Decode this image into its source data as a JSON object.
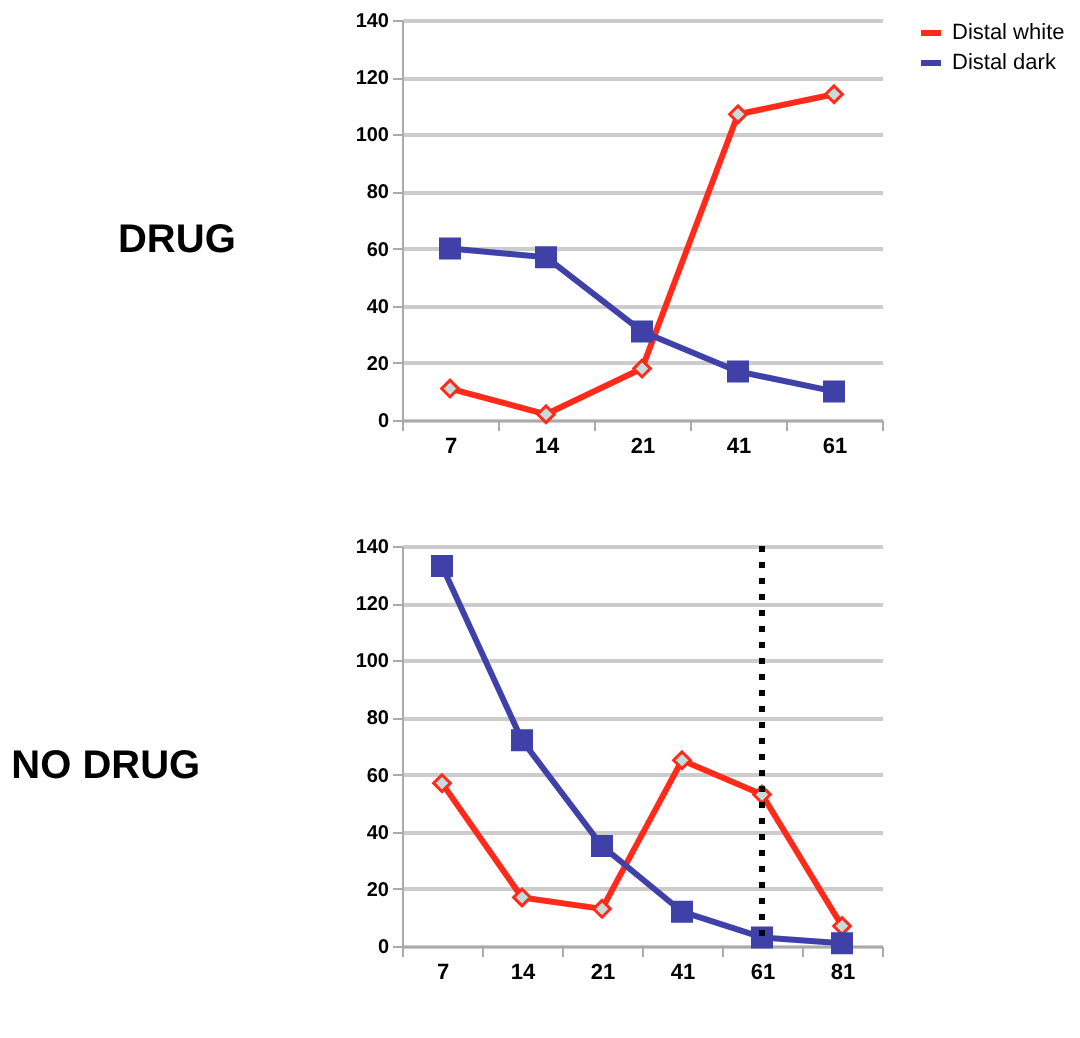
{
  "chart_data": [
    {
      "type": "line",
      "title": "DRUG",
      "categories": [
        "7",
        "14",
        "21",
        "41",
        "61"
      ],
      "series": [
        {
          "name": "Distal white",
          "color": "#ff2a1a",
          "marker": "diamond",
          "values": [
            11,
            2,
            18,
            107,
            114
          ]
        },
        {
          "name": "Distal dark",
          "color": "#3f40a8",
          "marker": "square",
          "values": [
            60,
            57,
            31,
            17,
            10
          ]
        }
      ],
      "ylim": [
        0,
        140
      ],
      "yticks": [
        0,
        20,
        40,
        60,
        80,
        100,
        120,
        140
      ],
      "grid": "y",
      "legend": "right"
    },
    {
      "type": "line",
      "title": "NO DRUG",
      "categories": [
        "7",
        "14",
        "21",
        "41",
        "61",
        "81"
      ],
      "series": [
        {
          "color": "#ff2a1a",
          "marker": "diamond",
          "values": [
            57,
            17,
            13,
            65,
            53,
            7
          ]
        },
        {
          "color": "#3f40a8",
          "marker": "square",
          "values": [
            133,
            72,
            35,
            12,
            3,
            1
          ]
        }
      ],
      "ylim": [
        0,
        140
      ],
      "yticks": [
        0,
        20,
        40,
        60,
        80,
        100,
        120,
        140
      ],
      "grid": "y",
      "legend": false,
      "ref_lines": [
        {
          "axis": "x",
          "value": "61",
          "color": "#000000",
          "line_style": "dotted"
        }
      ]
    }
  ]
}
